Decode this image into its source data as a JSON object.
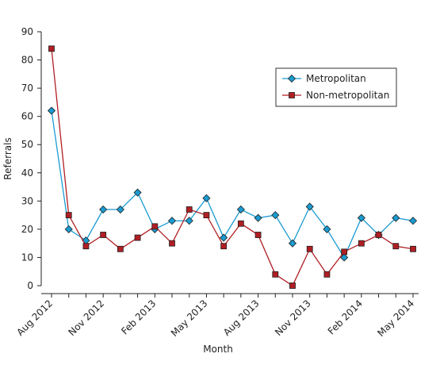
{
  "chart_data": {
    "type": "line",
    "title": "",
    "xlabel": "Month",
    "ylabel": "Referrals",
    "ylim": [
      0,
      90
    ],
    "yticks": [
      0,
      10,
      20,
      30,
      40,
      50,
      60,
      70,
      80,
      90
    ],
    "categories": [
      "Aug 2012",
      "Sep 2012",
      "Oct 2012",
      "Nov 2012",
      "Dec 2012",
      "Jan 2013",
      "Feb 2013",
      "Mar 2013",
      "Apr 2013",
      "May 2013",
      "Jun 2013",
      "Jul 2013",
      "Aug 2013",
      "Sep 2013",
      "Oct 2013",
      "Nov 2013",
      "Dec 2013",
      "Jan 2014",
      "Feb 2014",
      "Mar 2014",
      "Apr 2014",
      "May 2014"
    ],
    "xtick_labels": [
      "Aug 2012",
      "Nov 2012",
      "Feb 2013",
      "May 2013",
      "Aug 2013",
      "Nov 2013",
      "Feb 2014",
      "May 2014"
    ],
    "xtick_label_indices": [
      0,
      3,
      6,
      9,
      12,
      15,
      18,
      21
    ],
    "legend_position": "top-right",
    "grid": false,
    "series": [
      {
        "name": "Metropolitan",
        "color": "#1a9bd1",
        "marker": "diamond",
        "values": [
          62,
          20,
          16,
          27,
          27,
          33,
          20,
          23,
          23,
          31,
          17,
          27,
          24,
          25,
          15,
          28,
          20,
          10,
          24,
          18,
          24,
          23
        ]
      },
      {
        "name": "Non-metropolitan",
        "color": "#b01e24",
        "marker": "square",
        "values": [
          84,
          25,
          14,
          18,
          13,
          17,
          21,
          15,
          27,
          25,
          14,
          22,
          18,
          4,
          0,
          13,
          4,
          12,
          15,
          18,
          14,
          13
        ]
      }
    ]
  }
}
